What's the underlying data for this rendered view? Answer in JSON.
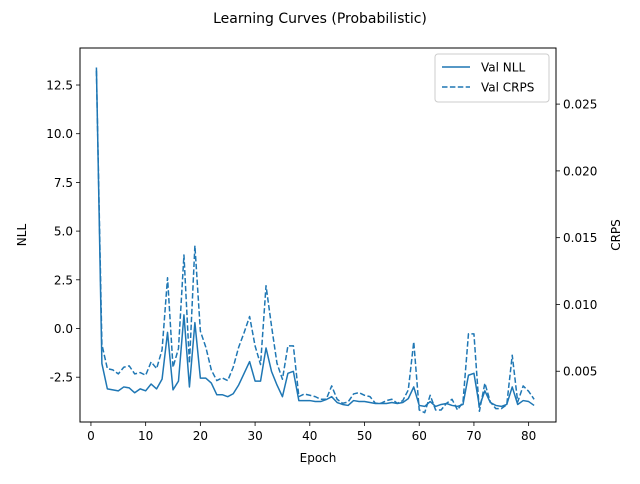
{
  "chart_data": {
    "type": "line",
    "title": "Learning Curves (Probabilistic)",
    "xlabel": "Epoch",
    "ylabel_left": "NLL",
    "ylabel_right": "CRPS",
    "xlim": [
      -2.0,
      85.0
    ],
    "ylim_left": [
      -4.8,
      14.4
    ],
    "ylim_right": [
      0.0012,
      0.0292
    ],
    "x_ticks": [
      0,
      10,
      20,
      30,
      40,
      50,
      60,
      70,
      80
    ],
    "y_left_ticks": [
      -2.5,
      0.0,
      2.5,
      5.0,
      7.5,
      10.0,
      12.5
    ],
    "y_right_ticks": [
      0.005,
      0.01,
      0.015,
      0.02,
      0.025
    ],
    "grid": false,
    "legend_position": "top-right",
    "color": "#1f77b4",
    "series": [
      {
        "name": "Val NLL",
        "axis": "left",
        "style": "solid",
        "x": [
          1,
          2,
          3,
          4,
          5,
          6,
          7,
          8,
          9,
          10,
          11,
          12,
          13,
          14,
          15,
          16,
          17,
          18,
          19,
          20,
          21,
          22,
          23,
          24,
          25,
          26,
          27,
          28,
          29,
          30,
          31,
          32,
          33,
          34,
          35,
          36,
          37,
          38,
          39,
          40,
          41,
          42,
          43,
          44,
          45,
          46,
          47,
          48,
          49,
          50,
          51,
          52,
          53,
          54,
          55,
          56,
          57,
          58,
          59,
          60,
          61,
          62,
          63,
          64,
          65,
          66,
          67,
          68,
          69,
          70,
          71,
          72,
          73,
          74,
          75,
          76,
          77,
          78,
          79,
          80,
          81
        ],
        "values": [
          13.4,
          -1.8,
          -3.1,
          -3.15,
          -3.2,
          -3.0,
          -3.05,
          -3.3,
          -3.1,
          -3.2,
          -2.85,
          -3.1,
          -2.6,
          -0.2,
          -3.15,
          -2.7,
          0.7,
          -3.0,
          0.3,
          -2.55,
          -2.55,
          -2.8,
          -3.4,
          -3.4,
          -3.5,
          -3.35,
          -2.9,
          -2.3,
          -1.7,
          -2.7,
          -2.7,
          -1.0,
          -2.2,
          -2.9,
          -3.5,
          -2.3,
          -2.2,
          -3.7,
          -3.7,
          -3.7,
          -3.75,
          -3.75,
          -3.65,
          -3.5,
          -3.8,
          -3.9,
          -3.95,
          -3.7,
          -3.75,
          -3.75,
          -3.8,
          -3.85,
          -3.85,
          -3.85,
          -3.8,
          -3.85,
          -3.8,
          -3.6,
          -3.0,
          -3.95,
          -4.0,
          -3.75,
          -4.0,
          -3.9,
          -3.85,
          -3.95,
          -4.0,
          -3.9,
          -2.4,
          -2.3,
          -4.0,
          -3.2,
          -3.8,
          -3.95,
          -4.0,
          -3.9,
          -3.0,
          -3.9,
          -3.7,
          -3.75,
          -3.95
        ]
      },
      {
        "name": "Val CRPS",
        "axis": "right",
        "style": "dashed",
        "x": [
          1,
          2,
          3,
          4,
          5,
          6,
          7,
          8,
          9,
          10,
          11,
          12,
          13,
          14,
          15,
          16,
          17,
          18,
          19,
          20,
          21,
          22,
          23,
          24,
          25,
          26,
          27,
          28,
          29,
          30,
          31,
          32,
          33,
          34,
          35,
          36,
          37,
          38,
          39,
          40,
          41,
          42,
          43,
          44,
          45,
          46,
          47,
          48,
          49,
          50,
          51,
          52,
          53,
          54,
          55,
          56,
          57,
          58,
          59,
          60,
          61,
          62,
          63,
          64,
          65,
          66,
          67,
          68,
          69,
          70,
          71,
          72,
          73,
          74,
          75,
          76,
          77,
          78,
          79,
          80,
          81
        ],
        "values": [
          0.0275,
          0.007,
          0.0052,
          0.0051,
          0.0048,
          0.0053,
          0.0054,
          0.0048,
          0.0049,
          0.0047,
          0.0057,
          0.0052,
          0.0066,
          0.012,
          0.0053,
          0.0067,
          0.0137,
          0.0056,
          0.0144,
          0.008,
          0.0068,
          0.0051,
          0.0043,
          0.0045,
          0.0043,
          0.0053,
          0.0068,
          0.0079,
          0.0091,
          0.0069,
          0.0055,
          0.0114,
          0.0084,
          0.0056,
          0.0044,
          0.0069,
          0.0069,
          0.0031,
          0.0033,
          0.0032,
          0.0031,
          0.0029,
          0.0029,
          0.0039,
          0.0029,
          0.0026,
          0.0027,
          0.0033,
          0.0034,
          0.0032,
          0.0031,
          0.0026,
          0.0026,
          0.0028,
          0.0029,
          0.0026,
          0.0028,
          0.0036,
          0.0072,
          0.0021,
          0.0019,
          0.0032,
          0.0021,
          0.0021,
          0.0026,
          0.0029,
          0.0021,
          0.0027,
          0.0078,
          0.0078,
          0.002,
          0.0041,
          0.0027,
          0.0022,
          0.0022,
          0.0025,
          0.0062,
          0.0027,
          0.0039,
          0.0035,
          0.0029
        ]
      }
    ]
  }
}
